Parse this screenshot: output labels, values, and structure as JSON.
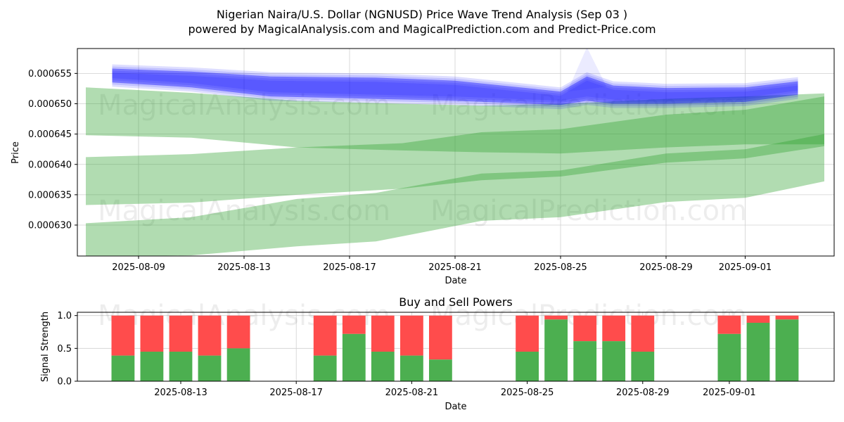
{
  "title_line1": "Nigerian Naira/U.S. Dollar (NGNUSD) Price Wave Trend Analysis (Sep 03 )",
  "title_line2": "powered by MagicalAnalysis.com and MagicalPrediction.com and Predict-Price.com",
  "watermarks": [
    "MagicalAnalysis.com",
    "MagicalPrediction.com"
  ],
  "colors": {
    "green": "#2ca02c",
    "blue": "#0000ff",
    "buy": "#4caf50",
    "sell": "#ff4c4c",
    "grid": "#d0d0d0"
  },
  "chart_data": [
    {
      "type": "area",
      "xlabel": "Date",
      "ylabel": "Price",
      "x_ticks": [
        "2025-08-09",
        "2025-08-13",
        "2025-08-17",
        "2025-08-21",
        "2025-08-25",
        "2025-08-29",
        "2025-09-01"
      ],
      "y_ticks": [
        "0.000630",
        "0.000635",
        "0.000640",
        "0.000645",
        "0.000650",
        "0.000655"
      ],
      "ylim": [
        0.0006249,
        0.0006591
      ],
      "green_bands": [
        {
          "dates": [
            "2025-08-07",
            "2025-08-11",
            "2025-08-15",
            "2025-08-19",
            "2025-08-22",
            "2025-08-25",
            "2025-08-29",
            "2025-09-01",
            "2025-09-04"
          ],
          "upper": [
            0.0006527,
            0.0006518,
            0.0006505,
            0.00065,
            0.0006497,
            0.00065,
            0.0006508,
            0.0006512,
            0.0006517
          ],
          "lower": [
            0.0006448,
            0.0006444,
            0.0006428,
            0.0006423,
            0.000642,
            0.0006418,
            0.0006428,
            0.0006433,
            0.0006433
          ]
        },
        {
          "dates": [
            "2025-08-07",
            "2025-08-11",
            "2025-08-15",
            "2025-08-19",
            "2025-08-22",
            "2025-08-25",
            "2025-08-29",
            "2025-09-01",
            "2025-09-04"
          ],
          "upper": [
            0.0006412,
            0.0006417,
            0.0006428,
            0.0006435,
            0.0006453,
            0.0006458,
            0.0006482,
            0.000649,
            0.0006512
          ],
          "lower": [
            0.0006333,
            0.0006337,
            0.000635,
            0.000636,
            0.0006374,
            0.000638,
            0.0006403,
            0.000641,
            0.000643
          ]
        },
        {
          "dates": [
            "2025-08-07",
            "2025-08-11",
            "2025-08-15",
            "2025-08-18",
            "2025-08-22",
            "2025-08-25",
            "2025-08-29",
            "2025-09-01",
            "2025-09-04"
          ],
          "upper": [
            0.0006303,
            0.0006313,
            0.0006343,
            0.0006353,
            0.0006385,
            0.000639,
            0.0006418,
            0.0006425,
            0.000645
          ],
          "lower": [
            0.0006248,
            0.000625,
            0.0006265,
            0.0006273,
            0.0006307,
            0.0006313,
            0.0006338,
            0.0006345,
            0.0006372
          ]
        }
      ],
      "blue_band": {
        "dates": [
          "2025-08-08",
          "2025-08-11",
          "2025-08-14",
          "2025-08-18",
          "2025-08-21",
          "2025-08-25",
          "2025-08-26",
          "2025-08-27",
          "2025-08-29",
          "2025-09-01",
          "2025-09-03"
        ],
        "upper": [
          0.0006558,
          0.0006553,
          0.0006545,
          0.0006543,
          0.0006538,
          0.000652,
          0.0006545,
          0.000653,
          0.0006526,
          0.0006527,
          0.0006537
        ],
        "lower": [
          0.0006535,
          0.0006527,
          0.0006512,
          0.0006508,
          0.0006505,
          0.0006498,
          0.0006505,
          0.00065,
          0.00065,
          0.0006503,
          0.0006515
        ]
      }
    },
    {
      "type": "bar",
      "title": "Buy and Sell Powers",
      "xlabel": "Date",
      "ylabel": "Signal Strength",
      "x_ticks": [
        "2025-08-13",
        "2025-08-17",
        "2025-08-21",
        "2025-08-25",
        "2025-08-29",
        "2025-09-01"
      ],
      "y_ticks": [
        "0.0",
        "0.5",
        "1.0"
      ],
      "ylim": [
        0,
        1.05
      ],
      "dates": [
        "2025-08-11",
        "2025-08-12",
        "2025-08-13",
        "2025-08-14",
        "2025-08-15",
        "2025-08-18",
        "2025-08-19",
        "2025-08-20",
        "2025-08-21",
        "2025-08-22",
        "2025-08-25",
        "2025-08-26",
        "2025-08-27",
        "2025-08-28",
        "2025-08-29",
        "2025-09-01",
        "2025-09-02",
        "2025-09-03"
      ],
      "buy": [
        0.39,
        0.45,
        0.45,
        0.39,
        0.5,
        0.39,
        0.72,
        0.45,
        0.39,
        0.33,
        0.45,
        0.94,
        0.61,
        0.61,
        0.45,
        0.72,
        0.89,
        0.94
      ]
    }
  ]
}
